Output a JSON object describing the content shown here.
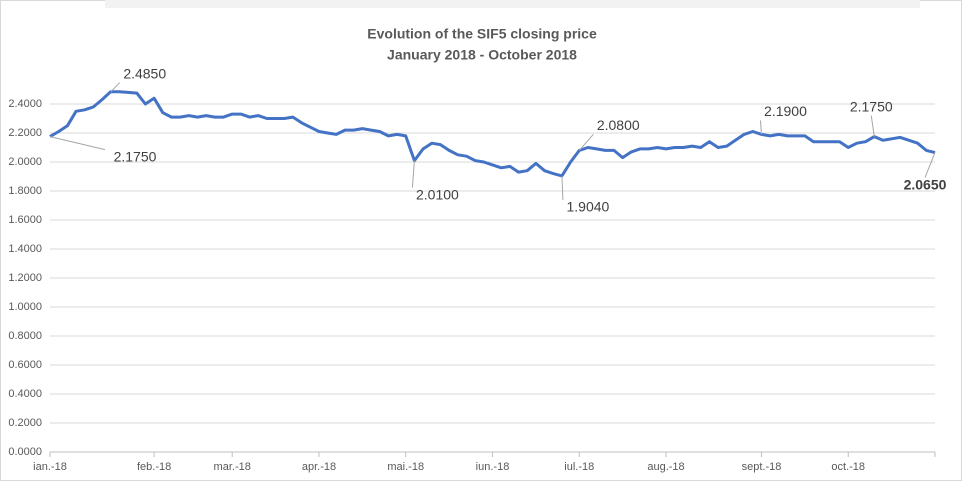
{
  "chart_data": {
    "type": "line",
    "title": "Evolution of the SIF5 closing price",
    "subtitle": "January 2018 - October 2018",
    "categories": [
      "ian.-18",
      null,
      null,
      null,
      null,
      null,
      null,
      null,
      null,
      null,
      null,
      null,
      "feb.-18",
      null,
      null,
      null,
      null,
      null,
      null,
      null,
      null,
      "mar.-18",
      null,
      null,
      null,
      null,
      null,
      null,
      null,
      null,
      null,
      "apr.-18",
      null,
      null,
      null,
      null,
      null,
      null,
      null,
      null,
      null,
      "mai.-18",
      null,
      null,
      null,
      null,
      null,
      null,
      null,
      null,
      null,
      "iun.-18",
      null,
      null,
      null,
      null,
      null,
      null,
      null,
      null,
      null,
      "iul.-18",
      null,
      null,
      null,
      null,
      null,
      null,
      null,
      null,
      null,
      "aug.-18",
      null,
      null,
      null,
      null,
      null,
      null,
      null,
      null,
      null,
      null,
      "sept.-18",
      null,
      null,
      null,
      null,
      null,
      null,
      null,
      null,
      null,
      "oct.-18",
      null,
      null,
      null,
      null,
      null,
      null,
      null,
      null,
      null,
      null
    ],
    "series": [
      {
        "name": "SIF5",
        "color": "#4472c4",
        "values": [
          2.175,
          2.21,
          2.25,
          2.35,
          2.36,
          2.38,
          2.43,
          2.485,
          2.485,
          2.48,
          2.475,
          2.4,
          2.44,
          2.34,
          2.31,
          2.31,
          2.32,
          2.31,
          2.32,
          2.31,
          2.31,
          2.33,
          2.33,
          2.31,
          2.32,
          2.3,
          2.3,
          2.3,
          2.31,
          2.27,
          2.24,
          2.21,
          2.2,
          2.19,
          2.22,
          2.22,
          2.23,
          2.22,
          2.21,
          2.18,
          2.19,
          2.18,
          2.01,
          2.09,
          2.13,
          2.12,
          2.08,
          2.05,
          2.04,
          2.01,
          2.0,
          1.98,
          1.96,
          1.97,
          1.93,
          1.94,
          1.99,
          1.94,
          1.92,
          1.904,
          2.0,
          2.08,
          2.1,
          2.09,
          2.08,
          2.08,
          2.03,
          2.07,
          2.09,
          2.09,
          2.1,
          2.09,
          2.1,
          2.1,
          2.11,
          2.1,
          2.14,
          2.1,
          2.11,
          2.15,
          2.19,
          2.21,
          2.19,
          2.18,
          2.19,
          2.18,
          2.18,
          2.18,
          2.14,
          2.14,
          2.14,
          2.14,
          2.1,
          2.13,
          2.14,
          2.175,
          2.15,
          2.16,
          2.17,
          2.15,
          2.13,
          2.08,
          2.065
        ],
        "value_labels": [
          "2.1750",
          null,
          null,
          null,
          null,
          null,
          null,
          "2.4850",
          null,
          null,
          null,
          null,
          null,
          null,
          null,
          null,
          null,
          null,
          null,
          null,
          null,
          null,
          null,
          null,
          null,
          null,
          null,
          null,
          null,
          null,
          null,
          null,
          null,
          null,
          null,
          null,
          null,
          null,
          null,
          null,
          null,
          null,
          "2.0100",
          null,
          null,
          null,
          null,
          null,
          null,
          null,
          null,
          null,
          null,
          null,
          null,
          null,
          null,
          null,
          null,
          "1.9040",
          null,
          "2.0800",
          null,
          null,
          null,
          null,
          null,
          null,
          null,
          null,
          null,
          null,
          null,
          null,
          null,
          null,
          null,
          null,
          null,
          null,
          null,
          null,
          "2.1900",
          null,
          null,
          null,
          null,
          null,
          null,
          null,
          null,
          null,
          null,
          null,
          null,
          "2.1750",
          null,
          null,
          null,
          null,
          null,
          null,
          "2.0650"
        ]
      }
    ],
    "ylim": [
      0,
      2.4
    ],
    "yticks": [
      {
        "value": 0,
        "label": "0.0000"
      },
      {
        "value": 0.2,
        "label": "0.2000"
      },
      {
        "value": 0.4,
        "label": "0.4000"
      },
      {
        "value": 0.6,
        "label": "0.6000"
      },
      {
        "value": 0.8,
        "label": "0.8000"
      },
      {
        "value": 1,
        "label": "1.0000"
      },
      {
        "value": 1.2,
        "label": "1.2000"
      },
      {
        "value": 1.4,
        "label": "1.4000"
      },
      {
        "value": 1.6,
        "label": "1.6000"
      },
      {
        "value": 1.8,
        "label": "1.8000"
      },
      {
        "value": 2,
        "label": "2.0000"
      },
      {
        "value": 2.2,
        "label": "2.2000"
      },
      {
        "value": 2.4,
        "label": "2.4000"
      }
    ],
    "grid": true
  }
}
